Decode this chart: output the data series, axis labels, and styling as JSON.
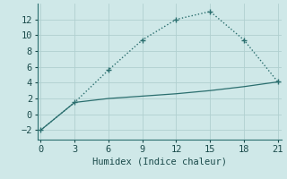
{
  "xlabel": "Humidex (Indice chaleur)",
  "background_color": "#cfe8e8",
  "grid_color": "#b0d0d0",
  "line_color": "#2a6e6e",
  "line1_x": [
    0,
    3,
    6,
    9,
    12,
    15,
    18,
    21
  ],
  "line1_y": [
    -2,
    1.5,
    5.6,
    9.4,
    12.0,
    13.0,
    9.4,
    4.1
  ],
  "line2_x": [
    0,
    3,
    6,
    9,
    12,
    15,
    18,
    21
  ],
  "line2_y": [
    -2,
    1.5,
    2.0,
    2.3,
    2.6,
    3.0,
    3.5,
    4.1
  ],
  "xlim": [
    -0.3,
    21.3
  ],
  "ylim": [
    -3.2,
    14.0
  ],
  "xticks": [
    0,
    3,
    6,
    9,
    12,
    15,
    18,
    21
  ],
  "yticks": [
    -2,
    0,
    2,
    4,
    6,
    8,
    10,
    12
  ],
  "fontsize": 7.5
}
